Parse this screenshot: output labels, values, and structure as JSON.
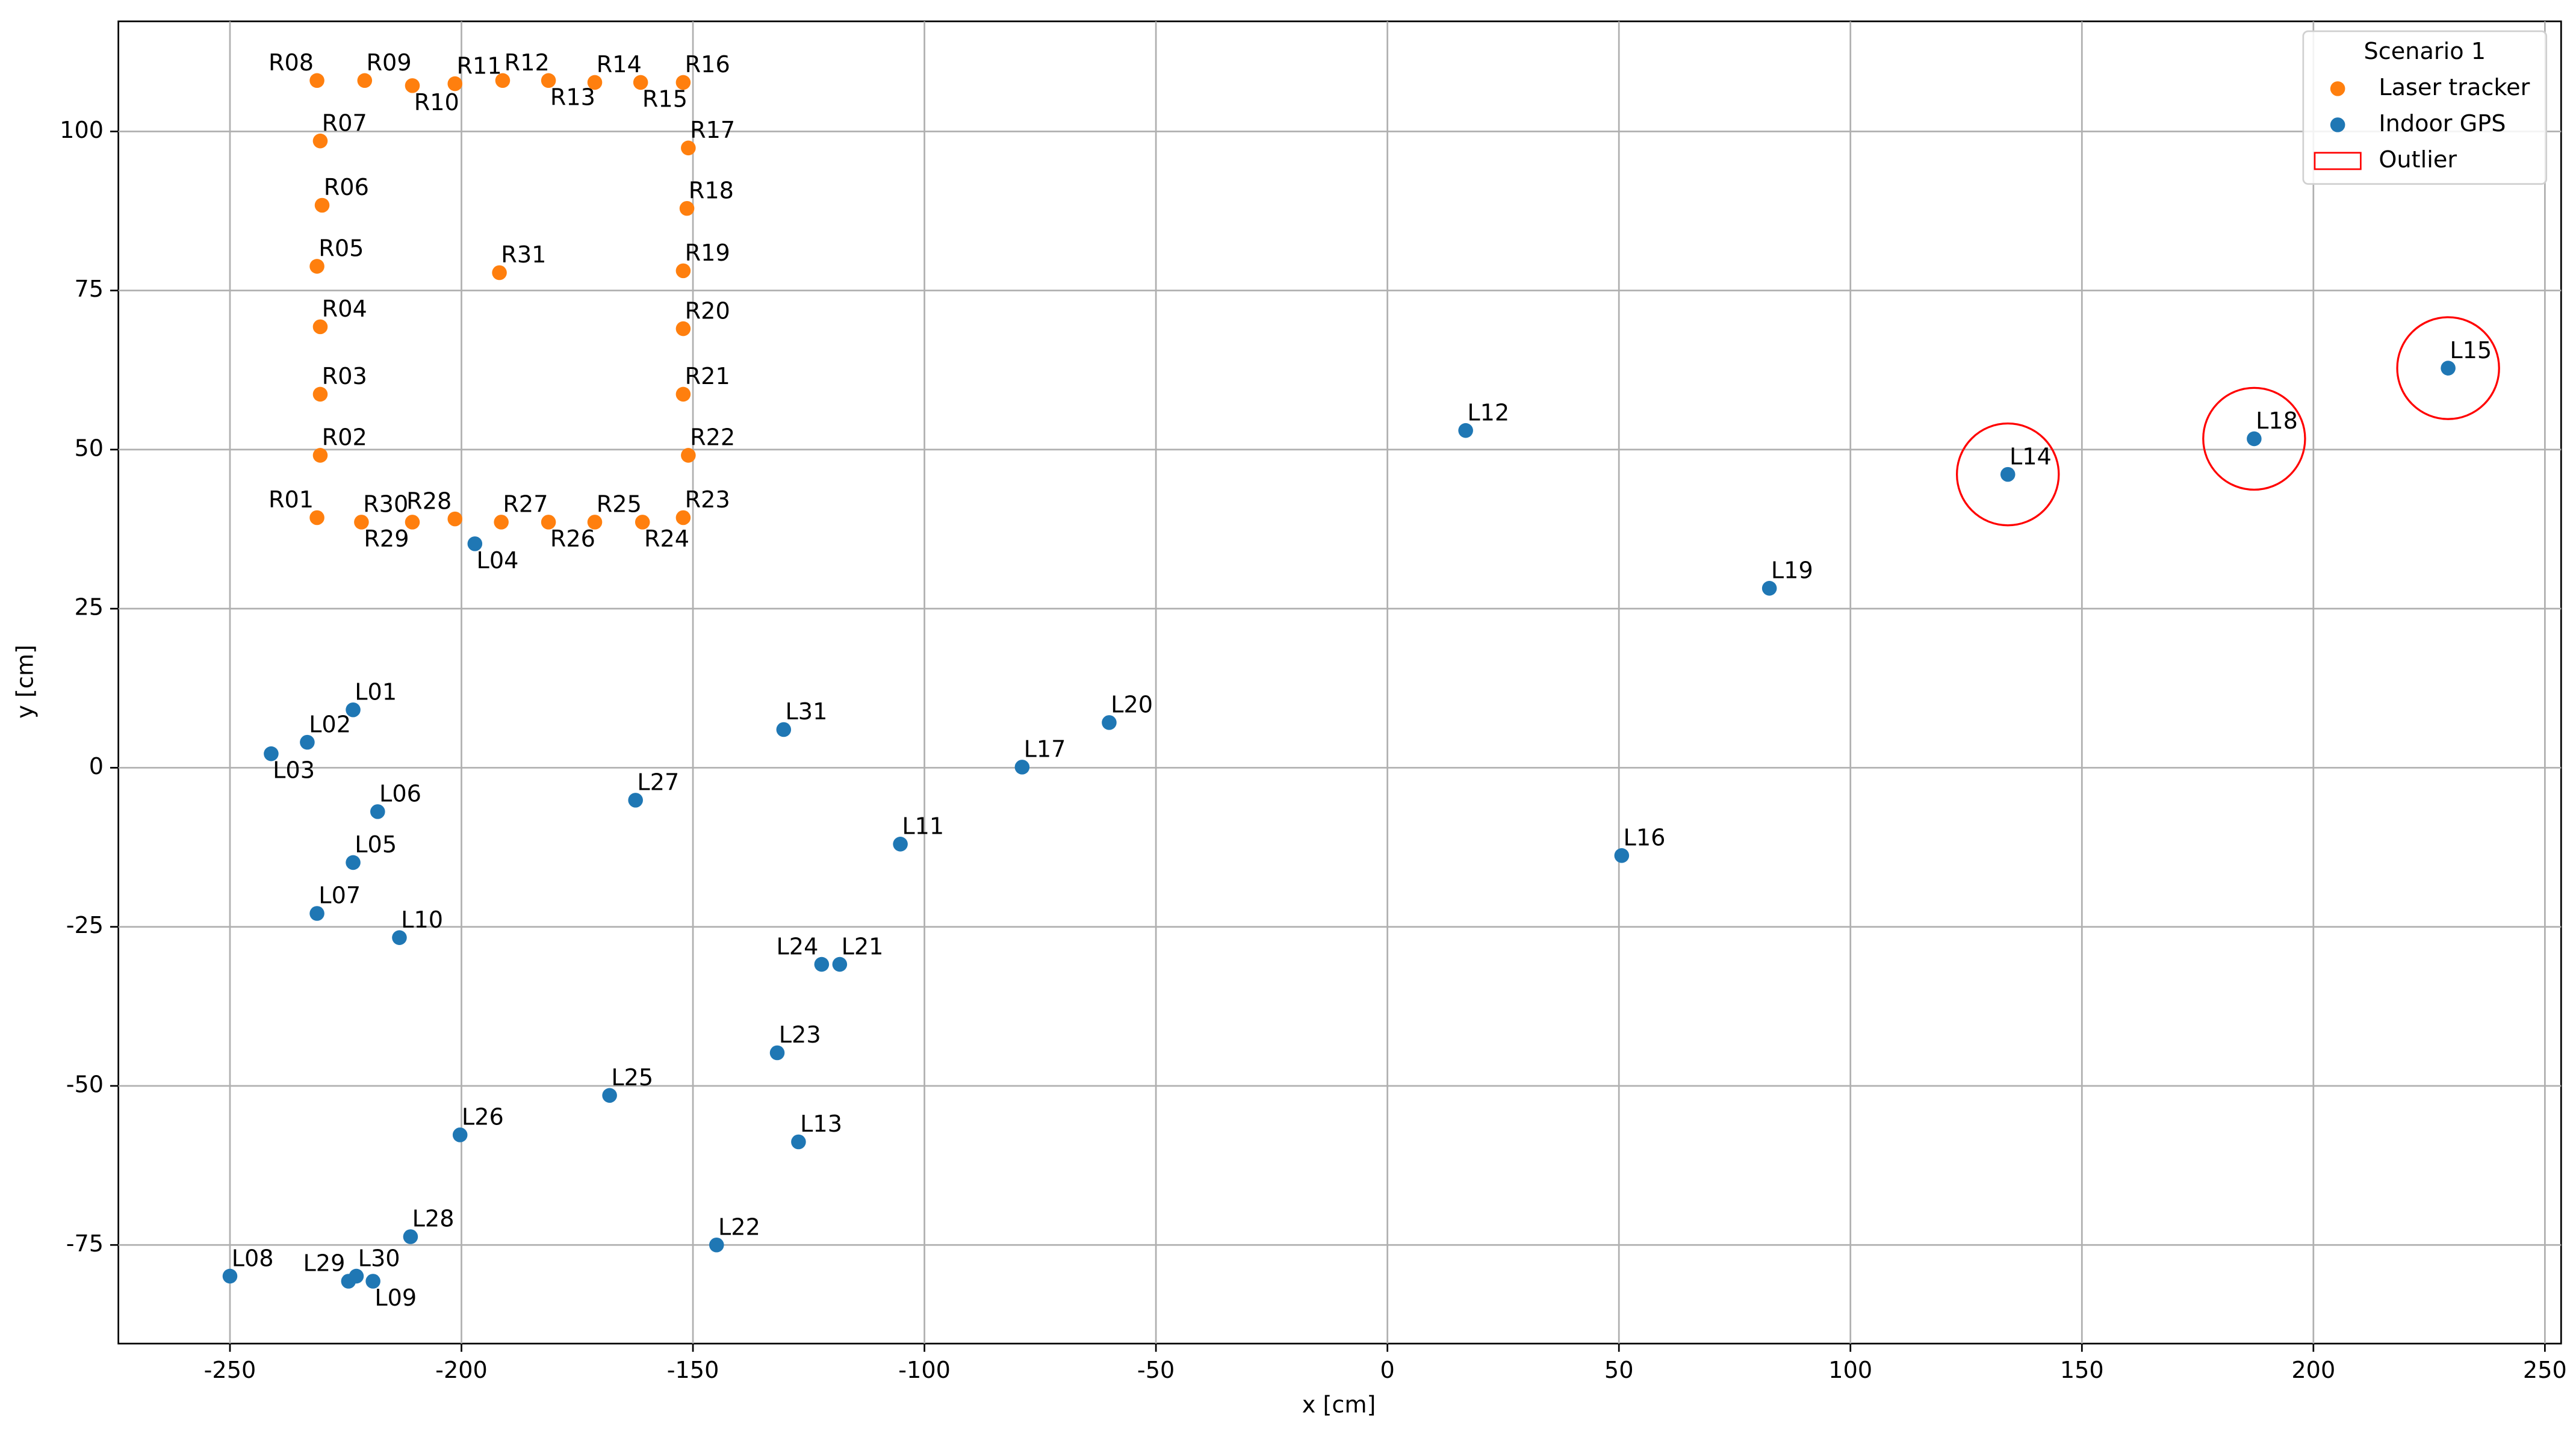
{
  "chart_data": {
    "type": "scatter",
    "xlabel": "x [cm]",
    "ylabel": "y [cm]",
    "xlim": [
      -274.1,
      253.5
    ],
    "ylim": [
      -90.5,
      117.3
    ],
    "xticks": [
      -250,
      -200,
      -150,
      -100,
      -50,
      0,
      50,
      100,
      150,
      200,
      250
    ],
    "yticks": [
      -75,
      -50,
      -25,
      0,
      25,
      50,
      75,
      100
    ],
    "grid": true,
    "legend_title": "Scenario 1",
    "legend_loc": "upper right",
    "series": [
      {
        "name": "Laser tracker",
        "color": "#ff7f0e",
        "labels": [
          "R01",
          "R02",
          "R03",
          "R04",
          "R05",
          "R06",
          "R07",
          "R08",
          "R09",
          "R10",
          "R11",
          "R12",
          "R13",
          "R14",
          "R15",
          "R16",
          "R17",
          "R18",
          "R19",
          "R20",
          "R21",
          "R22",
          "R23",
          "R24",
          "R25",
          "R26",
          "R27",
          "R28",
          "R29",
          "R30",
          "R31"
        ],
        "x": [
          -231.2,
          -230.5,
          -230.5,
          -230.5,
          -231.2,
          -230.1,
          -230.5,
          -231.2,
          -220.9,
          -210.6,
          -201.4,
          -191.1,
          -181.2,
          -171.2,
          -161.3,
          -152.1,
          -151.0,
          -151.3,
          -152.1,
          -152.1,
          -152.1,
          -151.0,
          -152.1,
          -160.9,
          -171.2,
          -181.2,
          -191.4,
          -201.4,
          -210.6,
          -221.6,
          -191.8
        ],
        "values": [
          39.3,
          49.1,
          58.7,
          69.3,
          78.8,
          88.4,
          98.5,
          108.0,
          108.0,
          107.2,
          107.5,
          108.0,
          108.0,
          107.7,
          107.7,
          107.7,
          97.4,
          87.9,
          78.1,
          69.0,
          58.7,
          49.1,
          39.3,
          38.6,
          38.6,
          38.6,
          38.6,
          39.1,
          38.6,
          38.6,
          77.8
        ]
      },
      {
        "name": "Indoor GPS",
        "color": "#1f77b4",
        "labels": [
          "L01",
          "L02",
          "L03",
          "L04",
          "L05",
          "L06",
          "L07",
          "L08",
          "L09",
          "L10",
          "L11",
          "L12",
          "L13",
          "L14",
          "L15",
          "L16",
          "L17",
          "L18",
          "L19",
          "L20",
          "L21",
          "L22",
          "L23",
          "L24",
          "L25",
          "L26",
          "L27",
          "L28",
          "L29",
          "L30",
          "L31"
        ],
        "x": [
          -223.4,
          -233.3,
          -241.1,
          -197.1,
          -223.4,
          -218.1,
          -231.2,
          -250,
          -219.1,
          -213.4,
          -105.2,
          16.9,
          -127.2,
          134.0,
          229.1,
          50.6,
          -78.9,
          187.2,
          82.5,
          -60.1,
          -118.3,
          -144.9,
          -131.8,
          -122.2,
          -168.0,
          -200.3,
          -162.4,
          -211.0,
          -224.4,
          -222.7,
          -130.4
        ],
        "values": [
          9.1,
          4.0,
          2.2,
          35.2,
          -14.9,
          -6.9,
          -22.9,
          -79.9,
          -80.7,
          -26.7,
          -12.0,
          53.0,
          -58.8,
          46.1,
          62.8,
          -13.8,
          0.1,
          51.7,
          28.2,
          7.1,
          -30.9,
          -75.0,
          -44.8,
          -30.9,
          -51.5,
          -57.7,
          -5.1,
          -73.7,
          -80.7,
          -79.9,
          6.0
        ]
      },
      {
        "name": "Outlier",
        "color": "#ff0000",
        "marker": "circle",
        "x": [
          134.0,
          187.2,
          229.1
        ],
        "values": [
          46.1,
          51.7,
          62.8
        ]
      }
    ]
  }
}
